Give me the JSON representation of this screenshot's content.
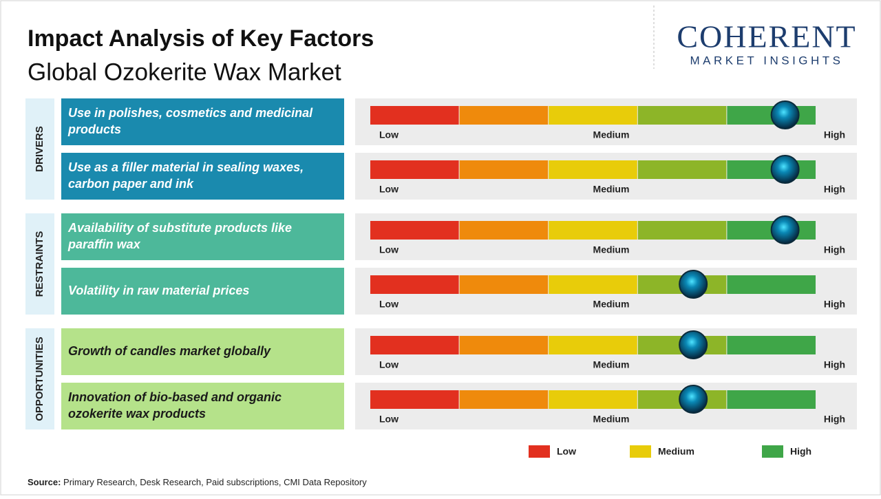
{
  "header": {
    "title": "Impact Analysis of Key Factors",
    "subtitle": "Global Ozokerite Wax Market"
  },
  "logo": {
    "name": "COHERENT",
    "tagline": "MARKET INSIGHTS"
  },
  "scale": {
    "range": [
      0,
      5
    ],
    "low": "Low",
    "medium": "Medium",
    "high": "High",
    "segment_colors": [
      "#e2301f",
      "#ef8a0c",
      "#e8cc0a",
      "#8db528",
      "#3fa648"
    ]
  },
  "groups": [
    {
      "label": "DRIVERS",
      "color": "#1a8aae",
      "text_color": "#ffffff",
      "factors": [
        {
          "text": "Use in polishes, cosmetics and medicinal products",
          "level": 4.65
        },
        {
          "text": "Use as a filler material in sealing waxes, carbon paper and ink",
          "level": 4.65
        }
      ]
    },
    {
      "label": "RESTRAINTS",
      "color": "#4db89a",
      "text_color": "#ffffff",
      "factors": [
        {
          "text": "Availability of substitute products like paraffin wax",
          "level": 4.65
        },
        {
          "text": "Volatility in raw material prices",
          "level": 3.62
        }
      ]
    },
    {
      "label": "OPPORTUNITIES",
      "color": "#b5e28a",
      "text_color": "#1a1a1a",
      "factors": [
        {
          "text": "Growth of candles market globally",
          "level": 3.62
        },
        {
          "text": "Innovation of bio-based and organic ozokerite wax products",
          "level": 3.62
        }
      ]
    }
  ],
  "legend": [
    {
      "name": "Low",
      "color": "#e2301f"
    },
    {
      "name": "Medium",
      "color": "#e8cc0a"
    },
    {
      "name": "High",
      "color": "#3fa648"
    }
  ],
  "source": {
    "label": "Source:",
    "text": "Primary Research, Desk Research, Paid subscriptions, CMI Data Repository"
  }
}
